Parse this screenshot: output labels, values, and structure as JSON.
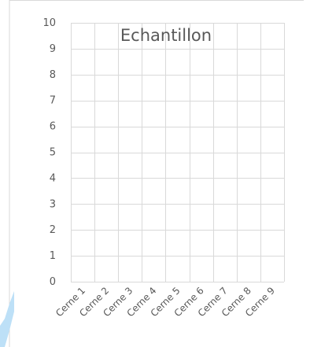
{
  "chart_data": {
    "type": "bar",
    "title": "Echantillon",
    "xlabel": "",
    "ylabel": "",
    "categories": [
      "Cerne 1",
      "Cerne 2",
      "Cerne 3",
      "Cerne 4",
      "Cerne 5",
      "Cerne 6",
      "Cerne 7",
      "Cerne 8",
      "Cerne 9"
    ],
    "series": [
      {
        "values": [
          null,
          null,
          null,
          null,
          null,
          null,
          null,
          null,
          null
        ]
      }
    ],
    "ylim": [
      0,
      10
    ],
    "yticks": [
      0,
      1,
      2,
      3,
      4,
      5,
      6,
      7,
      8,
      9,
      10
    ],
    "grid": true,
    "legend": "none"
  },
  "colors": {
    "grid": "#d9d9d9",
    "frame": "#d9d9d9",
    "text": "#595959",
    "title": "#595959",
    "accent": "#bde0f7"
  }
}
